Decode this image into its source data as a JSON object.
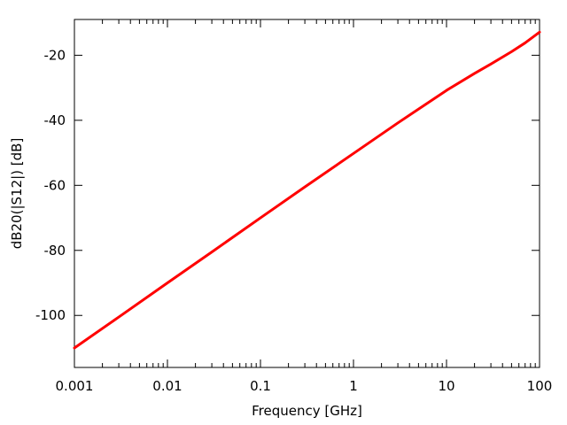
{
  "chart_data": {
    "type": "line",
    "title": "",
    "xlabel": "Frequency [GHz]",
    "ylabel": "dB20(|S12|) [dB]",
    "x_scale": "log",
    "xlim": [
      0.001,
      100
    ],
    "ylim": [
      -116,
      -9
    ],
    "x_ticks": [
      0.001,
      0.01,
      0.1,
      1,
      10,
      100
    ],
    "x_tick_labels": [
      "0.001",
      "0.01",
      "0.1",
      "1",
      "10",
      "100"
    ],
    "y_ticks": [
      -20,
      -40,
      -60,
      -80,
      -100
    ],
    "y_tick_labels": [
      "-20",
      "-40",
      "-60",
      "-80",
      "-100"
    ],
    "grid": false,
    "legend": false,
    "series": [
      {
        "color": "#ff0000",
        "x": [
          0.001,
          0.003,
          0.01,
          0.03,
          0.1,
          0.3,
          1,
          3,
          10,
          20,
          30,
          50,
          70,
          100
        ],
        "y": [
          -110,
          -100.5,
          -90,
          -80.5,
          -70,
          -60.5,
          -50.2,
          -40.8,
          -30.8,
          -25.6,
          -22.7,
          -18.9,
          -16.2,
          -12.9
        ]
      }
    ]
  }
}
